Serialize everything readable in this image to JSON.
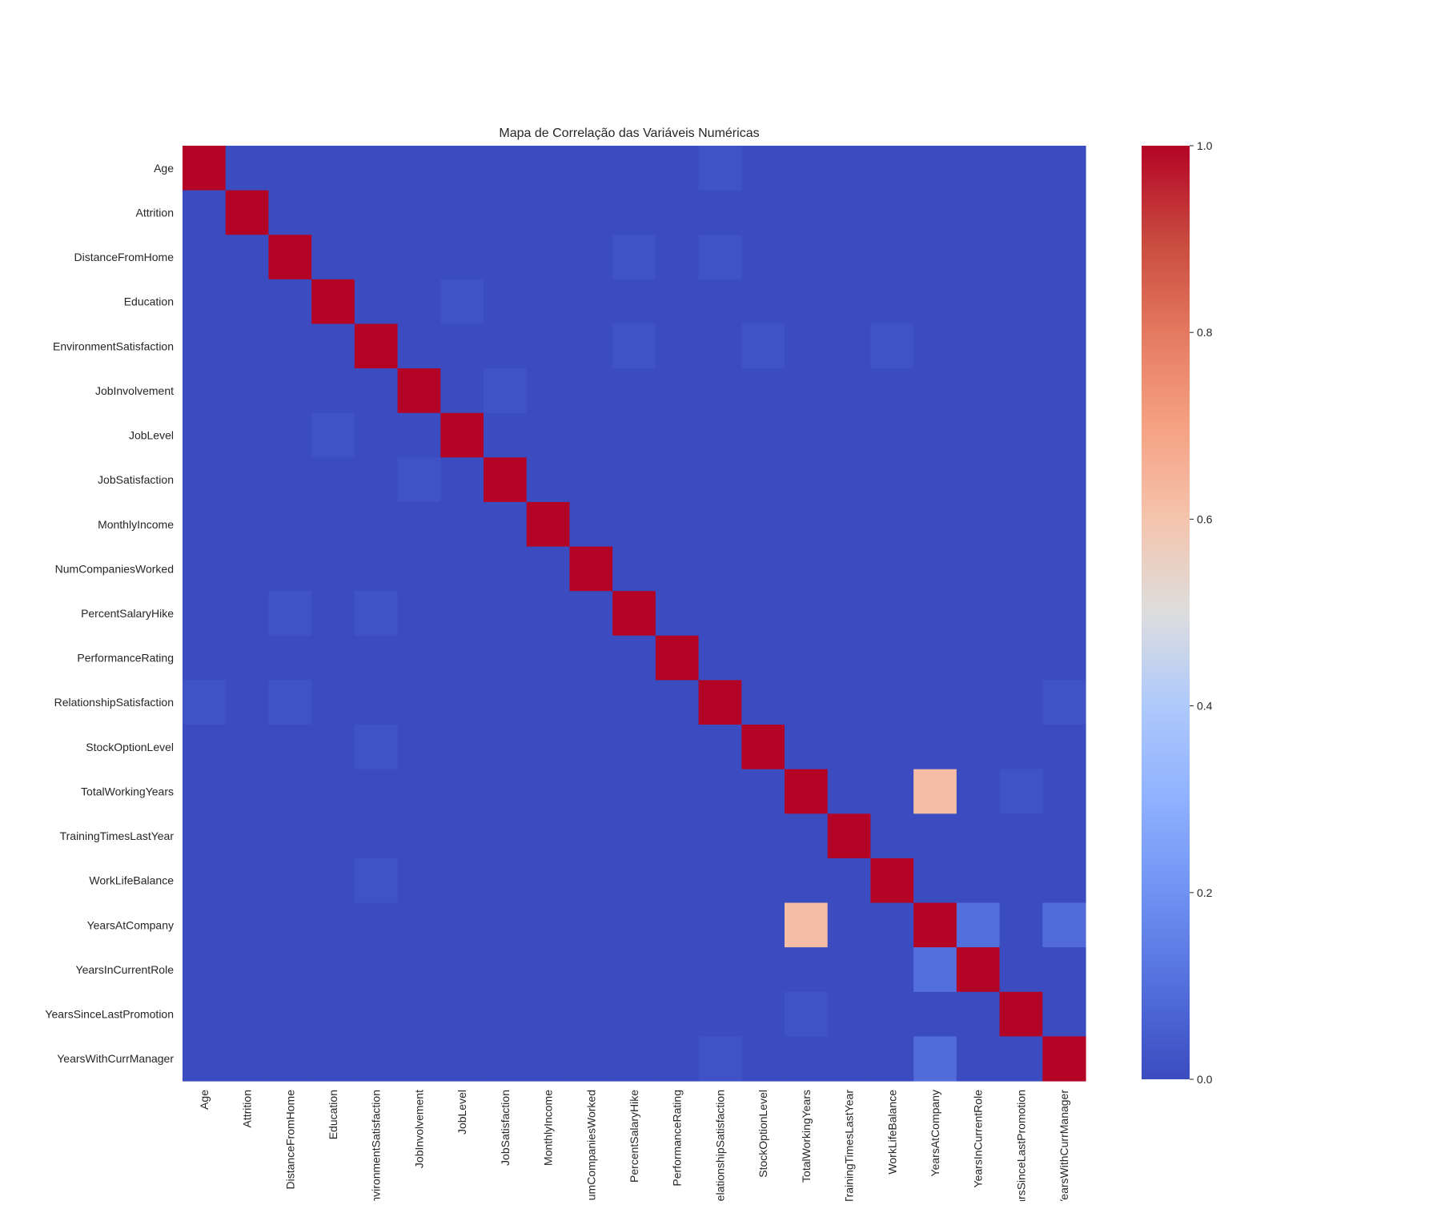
{
  "chart_data": {
    "type": "heatmap",
    "title": "Mapa de Correlação das Variáveis Numéricas",
    "variables": [
      "Age",
      "Attrition",
      "DistanceFromHome",
      "Education",
      "EnvironmentSatisfaction",
      "JobInvolvement",
      "JobLevel",
      "JobSatisfaction",
      "MonthlyIncome",
      "NumCompaniesWorked",
      "PercentSalaryHike",
      "PerformanceRating",
      "RelationshipSatisfaction",
      "StockOptionLevel",
      "TotalWorkingYears",
      "TrainingTimesLastYear",
      "WorkLifeBalance",
      "YearsAtCompany",
      "YearsInCurrentRole",
      "YearsSinceLastPromotion",
      "YearsWithCurrManager"
    ],
    "baseline_value": 0.0,
    "diagonal_value": 1.0,
    "off_diagonal": [
      {
        "row": "TotalWorkingYears",
        "col": "YearsAtCompany",
        "value": 0.62
      },
      {
        "row": "YearsAtCompany",
        "col": "TotalWorkingYears",
        "value": 0.62
      },
      {
        "row": "YearsAtCompany",
        "col": "YearsInCurrentRole",
        "value": 0.1
      },
      {
        "row": "YearsInCurrentRole",
        "col": "YearsAtCompany",
        "value": 0.1
      },
      {
        "row": "YearsAtCompany",
        "col": "YearsWithCurrManager",
        "value": 0.09
      },
      {
        "row": "YearsWithCurrManager",
        "col": "YearsAtCompany",
        "value": 0.09
      },
      {
        "row": "Age",
        "col": "RelationshipSatisfaction",
        "value": 0.02
      },
      {
        "row": "RelationshipSatisfaction",
        "col": "Age",
        "value": 0.02
      },
      {
        "row": "DistanceFromHome",
        "col": "PercentSalaryHike",
        "value": 0.02
      },
      {
        "row": "PercentSalaryHike",
        "col": "DistanceFromHome",
        "value": 0.02
      },
      {
        "row": "DistanceFromHome",
        "col": "RelationshipSatisfaction",
        "value": 0.02
      },
      {
        "row": "RelationshipSatisfaction",
        "col": "DistanceFromHome",
        "value": 0.02
      },
      {
        "row": "Education",
        "col": "JobLevel",
        "value": 0.02
      },
      {
        "row": "JobLevel",
        "col": "Education",
        "value": 0.02
      },
      {
        "row": "EnvironmentSatisfaction",
        "col": "PercentSalaryHike",
        "value": 0.02
      },
      {
        "row": "PercentSalaryHike",
        "col": "EnvironmentSatisfaction",
        "value": 0.02
      },
      {
        "row": "EnvironmentSatisfaction",
        "col": "StockOptionLevel",
        "value": 0.02
      },
      {
        "row": "StockOptionLevel",
        "col": "EnvironmentSatisfaction",
        "value": 0.02
      },
      {
        "row": "EnvironmentSatisfaction",
        "col": "WorkLifeBalance",
        "value": 0.02
      },
      {
        "row": "WorkLifeBalance",
        "col": "EnvironmentSatisfaction",
        "value": 0.02
      },
      {
        "row": "JobInvolvement",
        "col": "JobSatisfaction",
        "value": 0.02
      },
      {
        "row": "JobSatisfaction",
        "col": "JobInvolvement",
        "value": 0.02
      },
      {
        "row": "TotalWorkingYears",
        "col": "YearsSinceLastPromotion",
        "value": 0.02
      },
      {
        "row": "YearsSinceLastPromotion",
        "col": "TotalWorkingYears",
        "value": 0.02
      },
      {
        "row": "RelationshipSatisfaction",
        "col": "YearsWithCurrManager",
        "value": 0.02
      },
      {
        "row": "YearsWithCurrManager",
        "col": "RelationshipSatisfaction",
        "value": 0.02
      }
    ],
    "colormap": "coolwarm",
    "color_range": [
      0.0,
      1.0
    ],
    "colorbar_ticks": [
      "0.0",
      "0.2",
      "0.4",
      "0.6",
      "0.8",
      "1.0"
    ],
    "colorbar_tick_values": [
      0.0,
      0.2,
      0.4,
      0.6,
      0.8,
      1.0
    ],
    "grid": false,
    "colorbar_position": "right"
  }
}
